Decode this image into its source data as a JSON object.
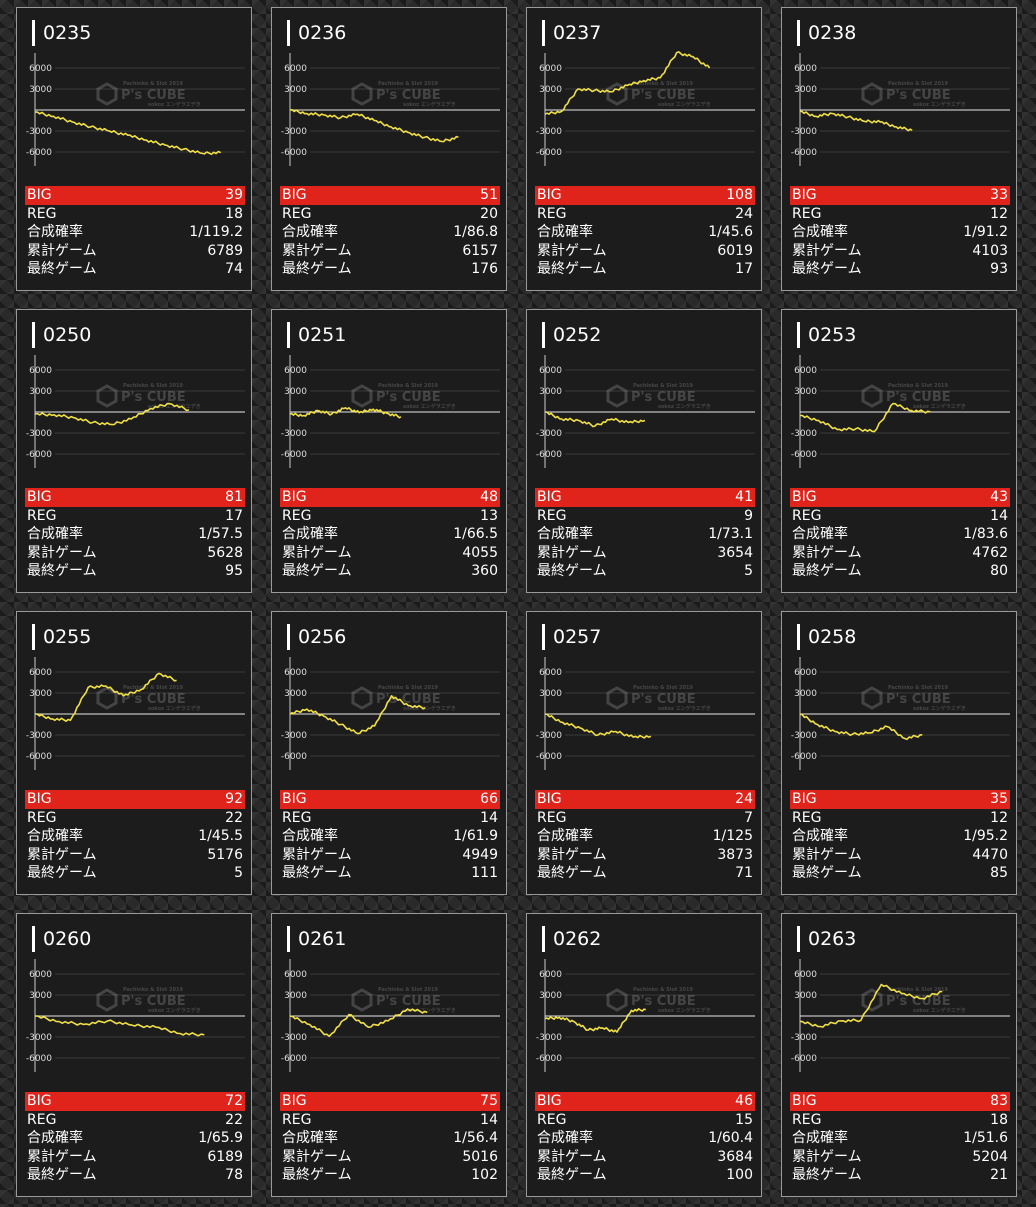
{
  "labels": {
    "big": "BIG",
    "reg": "REG",
    "prob": "合成確率",
    "games": "累計ゲーム",
    "last": "最終ゲーム"
  },
  "axis_ticks": [
    "6000",
    "3000",
    "-3000",
    "-6000"
  ],
  "watermark": {
    "top": "Pachinko & Slot 2019",
    "main": "P's CUBE",
    "sub": "sokoz エンゲラエデき"
  },
  "colors": {
    "line": "#f0e046",
    "big_bar": "#e0231b",
    "card_bg": "#1c1c1c"
  },
  "machines": [
    {
      "id": "0235",
      "big": "39",
      "reg": "18",
      "prob": "1/119.2",
      "games": "6789",
      "last": "74",
      "graph": [
        -300,
        -900,
        -1700,
        -2400,
        -3000,
        -3600,
        -4300,
        -5000,
        -5600,
        -6200,
        -6100
      ]
    },
    {
      "id": "0236",
      "big": "51",
      "reg": "20",
      "prob": "1/86.8",
      "games": "6157",
      "last": "176",
      "graph": [
        0,
        -500,
        -700,
        -1100,
        -600,
        -1500,
        -2400,
        -3200,
        -3900,
        -4500,
        -3900
      ]
    },
    {
      "id": "0237",
      "big": "108",
      "reg": "24",
      "prob": "1/45.6",
      "games": "6019",
      "last": "17",
      "graph": [
        -600,
        -200,
        3000,
        2800,
        2600,
        3500,
        4200,
        4600,
        8200,
        7600,
        6000
      ]
    },
    {
      "id": "0238",
      "big": "33",
      "reg": "12",
      "prob": "1/91.2",
      "games": "4103",
      "last": "93",
      "graph": [
        -200,
        -900,
        -500,
        -1000,
        -1600,
        -1700,
        -2400,
        -2900
      ]
    },
    {
      "id": "0250",
      "big": "81",
      "reg": "17",
      "prob": "1/57.5",
      "games": "5628",
      "last": "95",
      "graph": [
        -300,
        -400,
        -800,
        -1500,
        -1800,
        -1000,
        500,
        1200,
        300
      ]
    },
    {
      "id": "0251",
      "big": "48",
      "reg": "13",
      "prob": "1/66.5",
      "games": "4055",
      "last": "360",
      "graph": [
        -300,
        -500,
        200,
        -300,
        600,
        -100,
        400,
        -200,
        -700
      ]
    },
    {
      "id": "0252",
      "big": "41",
      "reg": "9",
      "prob": "1/73.1",
      "games": "3654",
      "last": "5",
      "graph": [
        0,
        -1000,
        -1200,
        -2000,
        -1000,
        -1500,
        -1200
      ]
    },
    {
      "id": "0253",
      "big": "43",
      "reg": "14",
      "prob": "1/83.6",
      "games": "4762",
      "last": "80",
      "graph": [
        -500,
        -1200,
        -2500,
        -2400,
        -2800,
        1200,
        200,
        0
      ]
    },
    {
      "id": "0255",
      "big": "92",
      "reg": "22",
      "prob": "1/45.5",
      "games": "5176",
      "last": "5",
      "graph": [
        0,
        -700,
        -900,
        3800,
        4000,
        2600,
        3500,
        5800,
        4800
      ]
    },
    {
      "id": "0256",
      "big": "66",
      "reg": "14",
      "prob": "1/61.9",
      "games": "4949",
      "last": "111",
      "graph": [
        0,
        700,
        -300,
        -1500,
        -2800,
        -1700,
        2600,
        1200,
        900
      ]
    },
    {
      "id": "0257",
      "big": "24",
      "reg": "7",
      "prob": "1/125",
      "games": "3873",
      "last": "71",
      "graph": [
        0,
        -1200,
        -2000,
        -3000,
        -2500,
        -3300,
        -3200
      ]
    },
    {
      "id": "0258",
      "big": "35",
      "reg": "12",
      "prob": "1/95.2",
      "games": "4470",
      "last": "85",
      "graph": [
        0,
        -1500,
        -2500,
        -2900,
        -2700,
        -1800,
        -3500,
        -3000
      ]
    },
    {
      "id": "0260",
      "big": "72",
      "reg": "22",
      "prob": "1/65.9",
      "games": "6189",
      "last": "78",
      "graph": [
        0,
        -800,
        -1200,
        -700,
        -1300,
        -1600,
        -2500,
        -2700
      ]
    },
    {
      "id": "0261",
      "big": "75",
      "reg": "14",
      "prob": "1/56.4",
      "games": "5016",
      "last": "102",
      "graph": [
        0,
        -1200,
        -2900,
        200,
        -1600,
        -700,
        1000,
        500
      ]
    },
    {
      "id": "0262",
      "big": "46",
      "reg": "15",
      "prob": "1/60.4",
      "games": "3684",
      "last": "100",
      "graph": [
        -400,
        -200,
        -800,
        -2000,
        -1700,
        -2300,
        800,
        900
      ]
    },
    {
      "id": "0263",
      "big": "83",
      "reg": "18",
      "prob": "1/51.6",
      "games": "5204",
      "last": "21",
      "graph": [
        -800,
        -1500,
        -700,
        -600,
        4500,
        3200,
        2500,
        3500
      ]
    }
  ]
}
